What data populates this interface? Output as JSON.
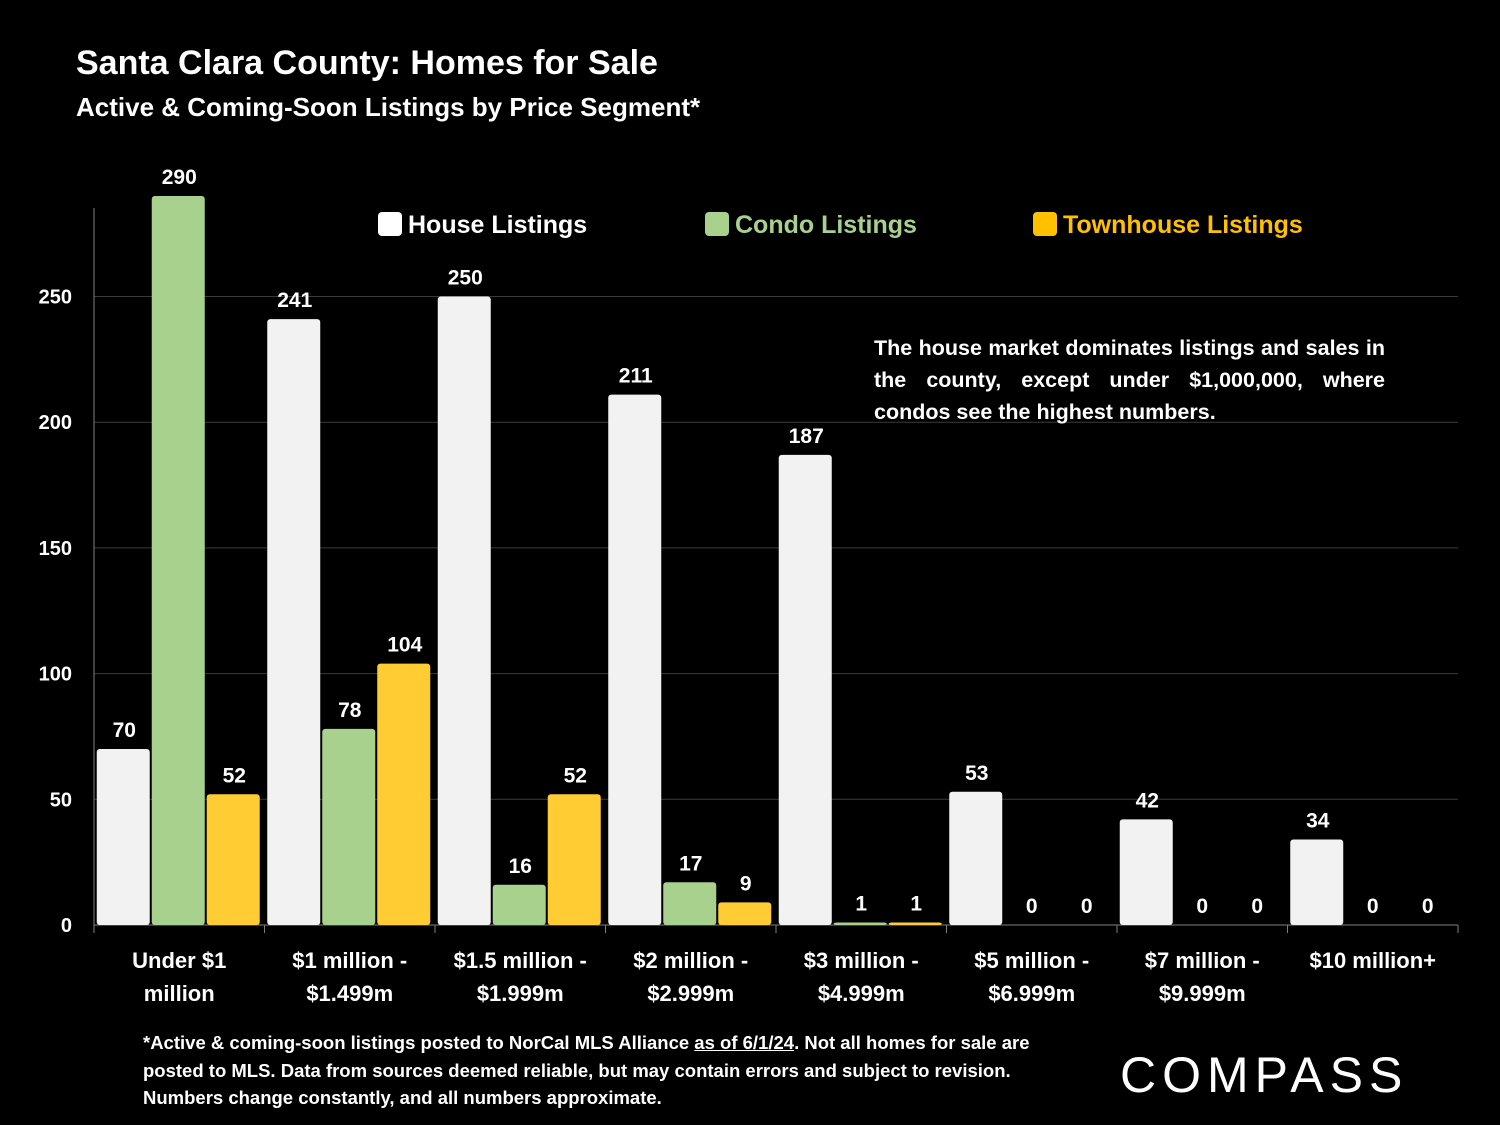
{
  "header": {
    "title": "Santa Clara County: Homes for Sale",
    "subtitle": "Active & Coming-Soon Listings by Price Segment*"
  },
  "annotation": "The house market dominates listings and sales in the county, except under $1,000,000, where condos see the highest numbers.",
  "footnote": {
    "part1": "*Active & coming-soon listings posted to NorCal MLS Alliance ",
    "date": "as of 6/1/24",
    "part2": ". Not all homes for sale are posted to MLS. Data from sources deemed reliable, but may contain errors and subject to revision. Numbers change constantly, and all numbers approximate."
  },
  "logo": "COMPASS",
  "chart_data": {
    "type": "bar",
    "title": "Santa Clara County: Homes for Sale",
    "subtitle": "Active & Coming-Soon Listings by Price Segment*",
    "xlabel": "",
    "ylabel": "",
    "ylim": [
      0,
      290
    ],
    "yticks": [
      0,
      50,
      100,
      150,
      200,
      250
    ],
    "grid": true,
    "legend_position": "top",
    "categories": [
      [
        "Under $1",
        "million"
      ],
      [
        "$1 million -",
        "$1.499m"
      ],
      [
        "$1.5 million -",
        "$1.999m"
      ],
      [
        "$2 million -",
        "$2.999m"
      ],
      [
        "$3 million -",
        "$4.999m"
      ],
      [
        "$5 million -",
        "$6.999m"
      ],
      [
        "$7 million -",
        "$9.999m"
      ],
      [
        "$10 million+"
      ]
    ],
    "series": [
      {
        "name": "House Listings",
        "color": "#f2f2f2",
        "legend_color": "#ffffff",
        "values": [
          70,
          241,
          250,
          211,
          187,
          53,
          42,
          34
        ]
      },
      {
        "name": "Condo Listings",
        "color": "#a9d18e",
        "legend_color": "#a9d18e",
        "values": [
          290,
          78,
          16,
          17,
          1,
          0,
          0,
          0
        ]
      },
      {
        "name": "Townhouse Listings",
        "color": "#ffcc33",
        "legend_color": "#ffc000",
        "values": [
          52,
          104,
          52,
          9,
          1,
          0,
          0,
          0
        ]
      }
    ]
  }
}
